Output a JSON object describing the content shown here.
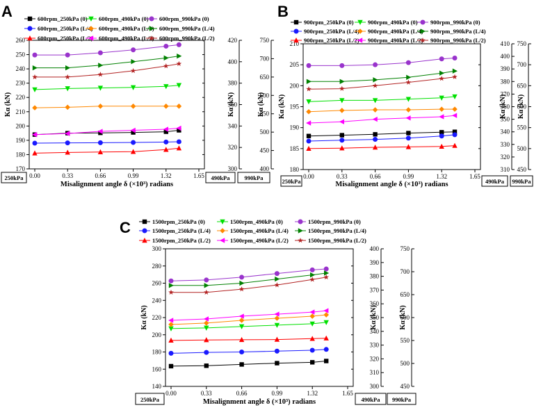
{
  "chart_data": [
    {
      "panel": "A",
      "type": "line",
      "xlabel": "Misalignment angle δ (×10³) radians",
      "ylabel": "Kα (kN)",
      "x": [
        0.0,
        0.33,
        0.66,
        0.99,
        1.32,
        1.45
      ],
      "xticks": [
        "0.00",
        "0.33",
        "0.66",
        "0.99",
        "1.32",
        "1.65"
      ],
      "axes": [
        {
          "name": "250kPa",
          "ylim": [
            170,
            260
          ],
          "ticks": [
            170,
            180,
            190,
            200,
            210,
            220,
            230,
            240,
            250,
            260
          ]
        },
        {
          "name": "490kPa",
          "ylim": [
            300,
            420
          ],
          "ticks": [
            300,
            320,
            340,
            360,
            380,
            400,
            420
          ]
        },
        {
          "name": "990kPa",
          "ylim": [
            400,
            750
          ],
          "ticks": [
            400,
            450,
            500,
            550,
            600,
            650,
            700,
            750
          ]
        }
      ],
      "series": [
        {
          "name": "600rpm_250kPa (0)",
          "axis": 0,
          "color": "#000000",
          "marker": "square",
          "values": [
            194,
            195,
            195.2,
            195.5,
            196,
            197
          ]
        },
        {
          "name": "600rpm_490kPa (0)",
          "axis": 1,
          "color": "#00e000",
          "marker": "tri-down",
          "values": [
            374,
            375,
            375.5,
            376,
            377,
            378
          ]
        },
        {
          "name": "600rpm_990kPa (0)",
          "axis": 2,
          "color": "#9933cc",
          "marker": "circle",
          "values": [
            710,
            710,
            716,
            724,
            734,
            738
          ]
        },
        {
          "name": "600rpm_250kPa (L/4)",
          "axis": 0,
          "color": "#1a1aff",
          "marker": "circle",
          "values": [
            188,
            188.2,
            188.3,
            188.5,
            188.8,
            189
          ]
        },
        {
          "name": "600rpm_490kPa (L/4)",
          "axis": 1,
          "color": "#ff8800",
          "marker": "diamond",
          "values": [
            357,
            357.5,
            358.5,
            358.5,
            358.5,
            358.5
          ]
        },
        {
          "name": "600rpm_990kPa (L/4)",
          "axis": 2,
          "color": "#008000",
          "marker": "tri-right",
          "values": [
            675,
            675,
            682,
            692,
            702,
            707
          ]
        },
        {
          "name": "600rpm_250kPa (L/2)",
          "axis": 0,
          "color": "#ff0000",
          "marker": "triangle",
          "values": [
            181,
            181.5,
            181.8,
            182,
            183.5,
            184.5
          ]
        },
        {
          "name": "600rpm_490kPa (L/2)",
          "axis": 1,
          "color": "#ff00ff",
          "marker": "tri-left",
          "values": [
            332,
            333,
            335,
            336,
            337,
            338
          ]
        },
        {
          "name": "600rpm_990kPa (L/2)",
          "axis": 2,
          "color": "#b22222",
          "marker": "star",
          "values": [
            650,
            650,
            657,
            667,
            680,
            686
          ]
        }
      ]
    },
    {
      "panel": "B",
      "type": "line",
      "xlabel": "Misalignment angle δ (×10³) radians",
      "ylabel": "Kα (kN)",
      "x": [
        0.0,
        0.33,
        0.66,
        0.99,
        1.32,
        1.45
      ],
      "xticks": [
        "0.00",
        "0.33",
        "0.66",
        "0.99",
        "1.32",
        "1.65"
      ],
      "axes": [
        {
          "name": "250kPa",
          "ylim": [
            180,
            210
          ],
          "ticks": [
            180,
            185,
            190,
            195,
            200,
            205,
            210
          ]
        },
        {
          "name": "490kPa",
          "ylim": [
            310,
            410
          ],
          "ticks": [
            310,
            320,
            330,
            340,
            350,
            360,
            370,
            380,
            390,
            400,
            410
          ]
        },
        {
          "name": "990kPa",
          "ylim": [
            450,
            750
          ],
          "ticks": [
            450,
            500,
            550,
            600,
            650,
            700,
            750
          ]
        }
      ],
      "series": [
        {
          "name": "900rpm_250kPa (0)",
          "axis": 0,
          "color": "#000000",
          "marker": "square",
          "values": [
            188,
            188.2,
            188.4,
            188.7,
            188.9,
            189
          ]
        },
        {
          "name": "900rpm_490kPa (0)",
          "axis": 1,
          "color": "#00e000",
          "marker": "tri-down",
          "values": [
            364,
            365,
            365,
            366,
            367,
            368
          ]
        },
        {
          "name": "900rpm_990kPa (0)",
          "axis": 2,
          "color": "#9933cc",
          "marker": "circle",
          "values": [
            698,
            698,
            700,
            705,
            714,
            716
          ]
        },
        {
          "name": "900rpm_250kPa (L/4)",
          "axis": 0,
          "color": "#1a1aff",
          "marker": "circle",
          "values": [
            186.8,
            187,
            187.2,
            187.5,
            188,
            188.3
          ]
        },
        {
          "name": "900rpm_490kPa (L/4)",
          "axis": 1,
          "color": "#ff8800",
          "marker": "diamond",
          "values": [
            356,
            357,
            357.5,
            357.5,
            358,
            358
          ]
        },
        {
          "name": "900rpm_990kPa (L/4)",
          "axis": 2,
          "color": "#008000",
          "marker": "tri-right",
          "values": [
            660,
            660,
            664,
            670,
            680,
            685
          ]
        },
        {
          "name": "900rpm_250kPa (L/2)",
          "axis": 0,
          "color": "#ff0000",
          "marker": "triangle",
          "values": [
            185,
            185.1,
            185.3,
            185.4,
            185.5,
            185.7
          ]
        },
        {
          "name": "900rpm_490kPa (L/2)",
          "axis": 1,
          "color": "#ff00ff",
          "marker": "tri-left",
          "values": [
            347,
            348,
            350,
            351,
            352,
            353
          ]
        },
        {
          "name": "900rpm_990kPa (L/2)",
          "axis": 2,
          "color": "#b22222",
          "marker": "star",
          "values": [
            642,
            643,
            650,
            658,
            667,
            671
          ]
        }
      ]
    },
    {
      "panel": "C",
      "type": "line",
      "xlabel": "Misalignment angle δ (×10³) radians",
      "ylabel": "Kα (kN)",
      "x": [
        0.0,
        0.33,
        0.66,
        0.99,
        1.32,
        1.45
      ],
      "xticks": [
        "0.00",
        "0.33",
        "0.66",
        "0.99",
        "1.32",
        "1.65"
      ],
      "axes": [
        {
          "name": "250kPa",
          "ylim": [
            140,
            300
          ],
          "ticks": [
            140,
            160,
            180,
            200,
            220,
            240,
            260,
            280,
            300
          ]
        },
        {
          "name": "490kPa",
          "ylim": [
            300,
            400
          ],
          "ticks": [
            300,
            310,
            320,
            330,
            340,
            350,
            360,
            370,
            380,
            390,
            400
          ]
        },
        {
          "name": "990kPa",
          "ylim": [
            450,
            750
          ],
          "ticks": [
            450,
            500,
            550,
            600,
            650,
            700,
            750
          ]
        }
      ],
      "series": [
        {
          "name": "1500rpm_250kPa (0)",
          "axis": 0,
          "color": "#000000",
          "marker": "square",
          "values": [
            163.5,
            164,
            165.5,
            167,
            168,
            169.5
          ]
        },
        {
          "name": "1500rpm_490kPa (0)",
          "axis": 1,
          "color": "#00e000",
          "marker": "tri-down",
          "values": [
            342,
            342.5,
            343.5,
            344.5,
            345.5,
            346.5
          ]
        },
        {
          "name": "1500rpm_990kPa (0)",
          "axis": 2,
          "color": "#9933cc",
          "marker": "circle",
          "values": [
            680,
            682,
            688,
            696,
            704,
            706
          ]
        },
        {
          "name": "1500rpm_250kPa (L/4)",
          "axis": 0,
          "color": "#1a1aff",
          "marker": "circle",
          "values": [
            178.5,
            179.5,
            180,
            181,
            182,
            183
          ]
        },
        {
          "name": "1500rpm_490kPa (L/4)",
          "axis": 1,
          "color": "#ff8800",
          "marker": "diamond",
          "values": [
            345,
            346,
            348,
            349.5,
            351,
            352
          ]
        },
        {
          "name": "1500rpm_990kPa (L/4)",
          "axis": 2,
          "color": "#008000",
          "marker": "tri-right",
          "values": [
            670,
            670,
            675,
            684,
            693,
            697
          ]
        },
        {
          "name": "1500rpm_250kPa (L/2)",
          "axis": 0,
          "color": "#ff0000",
          "marker": "triangle",
          "values": [
            193.5,
            194,
            194.2,
            194.5,
            195.5,
            196
          ]
        },
        {
          "name": "1500rpm_490kPa (L/2)",
          "axis": 1,
          "color": "#ff00ff",
          "marker": "tri-left",
          "values": [
            348,
            349,
            351,
            352.5,
            354,
            355
          ]
        },
        {
          "name": "1500rpm_990kPa (L/2)",
          "axis": 2,
          "color": "#b22222",
          "marker": "star",
          "values": [
            655,
            655,
            662,
            671,
            683,
            688
          ]
        }
      ]
    }
  ]
}
